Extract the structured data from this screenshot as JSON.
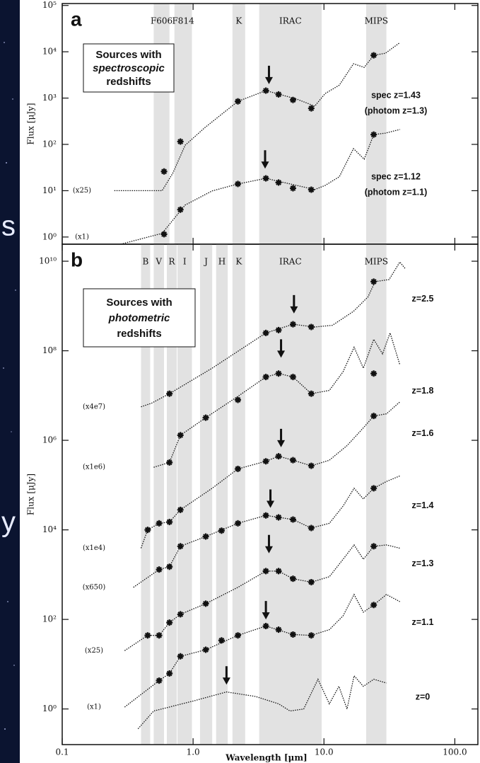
{
  "chart_data": [
    {
      "type": "line",
      "panel_label": "a",
      "ylabel": "Flux [μJy]",
      "xlim": [
        0.1,
        150
      ],
      "ylim": [
        0.7,
        110000
      ],
      "log_x": true,
      "log_y": true,
      "yticks": [
        {
          "value": 1,
          "label": "10⁰"
        },
        {
          "value": 10,
          "label": "10¹"
        },
        {
          "value": 100,
          "label": "10²"
        },
        {
          "value": 1000,
          "label": "10³"
        },
        {
          "value": 10000,
          "label": "10⁴"
        },
        {
          "value": 100000,
          "label": "10⁵"
        }
      ],
      "color": "#111111",
      "band_color": "#e2e2e2",
      "box_text": [
        "Sources with",
        "spectroscopic",
        "redshifts"
      ],
      "bands": [
        {
          "label": "F606",
          "range": [
            0.5,
            0.66
          ]
        },
        {
          "label": "F814",
          "range": [
            0.72,
            0.98
          ]
        },
        {
          "label": "K",
          "range": [
            2.0,
            2.5
          ]
        },
        {
          "label": "IRAC",
          "range": [
            3.2,
            9.6
          ]
        },
        {
          "label": "MIPS",
          "range": [
            21,
            30
          ]
        }
      ],
      "series": [
        {
          "labels": [
            "spec z=1.43",
            "(photom z=1.3)"
          ],
          "scale": "(x25)",
          "points": {
            "x": [
              0.6,
              0.8,
              2.2,
              3.6,
              4.5,
              5.8,
              8.0,
              24
            ],
            "values": [
              26,
              115,
              850,
              1450,
              1200,
              910,
              600,
              8400
            ]
          },
          "curve": {
            "x": [
              0.25,
              0.58,
              0.7,
              0.87,
              1.23,
              2.2,
              3.6,
              6.2,
              8.5,
              10.2,
              13.1,
              16.8,
              20.3,
              24,
              29.5,
              38
            ],
            "values": [
              10,
              10,
              24,
              96,
              230,
              850,
              1450,
              950,
              670,
              1250,
              1900,
              5500,
              4600,
              8400,
              9300,
              15700
            ]
          },
          "arrow": {
            "x": 3.8,
            "y": 2000
          }
        },
        {
          "labels": [
            "spec z=1.12",
            "(photom z=1.1)"
          ],
          "scale": "(x1)",
          "points": {
            "x": [
              0.6,
              0.8,
              2.2,
              3.6,
              4.5,
              5.8,
              8.0,
              24
            ],
            "values": [
              1.15,
              3.9,
              14,
              18.5,
              15,
              11.3,
              10.5,
              163
            ]
          },
          "curve": {
            "x": [
              0.28,
              0.58,
              0.87,
              1.4,
              2.2,
              3.6,
              6.2,
              8.5,
              10.2,
              13.1,
              16.8,
              20.3,
              24,
              29.5,
              38
            ],
            "values": [
              0.7,
              1.2,
              4.9,
              9.9,
              14,
              18.5,
              13,
              10.6,
              13,
              20,
              81,
              48,
              163,
              175,
              210
            ]
          },
          "arrow": {
            "x": 3.55,
            "y": 30
          }
        }
      ]
    },
    {
      "type": "line",
      "panel_label": "b",
      "ylabel": "Flux [μJy]",
      "xlabel": "Wavelength [μm]",
      "xlim": [
        0.1,
        150
      ],
      "ylim": [
        0.16,
        24000000000
      ],
      "log_x": true,
      "log_y": true,
      "xticks": [
        0.1,
        {
          "value": 1,
          "label": "1.0"
        },
        {
          "value": 10,
          "label": "10.0"
        },
        {
          "value": 100,
          "label": "100.0"
        }
      ],
      "yticks": [
        {
          "value": 1,
          "label": "10⁰"
        },
        {
          "value": 100,
          "label": "10²"
        },
        {
          "value": 10000,
          "label": "10⁴"
        },
        {
          "value": 1000000,
          "label": "10⁶"
        },
        {
          "value": 100000000,
          "label": "10⁸"
        },
        {
          "value": 10000000000,
          "label": "10¹⁰"
        }
      ],
      "color": "#111111",
      "band_color": "#e2e2e2",
      "box_text": [
        "Sources with",
        "photometric",
        "redshifts"
      ],
      "bands": [
        {
          "label": "B",
          "range": [
            0.4,
            0.47
          ]
        },
        {
          "label": "V",
          "range": [
            0.5,
            0.6
          ]
        },
        {
          "label": "R",
          "range": [
            0.63,
            0.75
          ]
        },
        {
          "label": "I",
          "range": [
            0.76,
            0.98
          ]
        },
        {
          "label": "J",
          "range": [
            1.13,
            1.4
          ]
        },
        {
          "label": "H",
          "range": [
            1.5,
            1.84
          ]
        },
        {
          "label": "K",
          "range": [
            2.0,
            2.5
          ]
        },
        {
          "label": "IRAC",
          "range": [
            3.2,
            9.6
          ]
        },
        {
          "label": "MIPS",
          "range": [
            21,
            30
          ]
        }
      ],
      "series": [
        {
          "labels": [
            "z=2.5"
          ],
          "scale": "(x4e7)",
          "points": {
            "x": [
              0.66,
              3.6,
              4.5,
              5.8,
              8.0,
              24
            ],
            "values": [
              11000000.0,
              250000000.0,
              290000000.0,
              390000000.0,
              340000000.0,
              3500000000.0
            ]
          },
          "curve": {
            "x": [
              0.4,
              0.48,
              0.66,
              1.4,
              3.6,
              5.8,
              8.5,
              11.6,
              16.8,
              21.7,
              24.6,
              31.5,
              38,
              42
            ],
            "values": [
              5600000.0,
              6700000.0,
              11000000.0,
              41000000.0,
              250000000.0,
              390000000.0,
              340000000.0,
              370000000.0,
              760000000.0,
              1600000000.0,
              3500000000.0,
              3900000000.0,
              9600000000.0,
              6700000000.0
            ]
          },
          "arrow": {
            "x": 5.9,
            "y": 680000000.0
          }
        },
        {
          "labels": [
            "z=1.8"
          ],
          "scale": "(x1e6)",
          "points": {
            "x": [
              0.66,
              0.8,
              1.25,
              2.2,
              3.6,
              4.5,
              5.8,
              8.0,
              24
            ],
            "values": [
              320000.0,
              1300000.0,
              3200000.0,
              8000000.0,
              26000000.0,
              31000000.0,
              26000000.0,
              11000000.0,
              31000000.0
            ]
          },
          "curve": {
            "x": [
              0.5,
              0.66,
              0.8,
              1.25,
              2.2,
              3.6,
              4.5,
              5.8,
              8.0,
              11,
              14,
              17,
              20,
              24,
              28,
              32,
              38
            ],
            "values": [
              250000.0,
              320000.0,
              1300000.0,
              3200000.0,
              9600000.0,
              26000000.0,
              31000000.0,
              26000000.0,
              11000000.0,
              13000000.0,
              34000000.0,
              120000000.0,
              41000000.0,
              180000000.0,
              85000000.0,
              250000000.0,
              49000000.0
            ]
          },
          "arrow": {
            "x": 4.7,
            "y": 70000000.0
          }
        },
        {
          "labels": [
            "z=1.6"
          ],
          "scale": "(x1e4)",
          "points": {
            "x": [
              0.45,
              0.55,
              0.66,
              0.8,
              2.2,
              3.6,
              4.5,
              5.8,
              8.0,
              24
            ],
            "values": [
              10000.0,
              14000.0,
              15000.0,
              28000.0,
              230000.0,
              340000.0,
              440000.0,
              360000.0,
              270000.0,
              3500000.0
            ]
          },
          "curve": {
            "x": [
              0.4,
              0.45,
              0.55,
              0.66,
              0.8,
              1.4,
              2.2,
              3.6,
              4.5,
              5.8,
              8.0,
              11,
              15,
              20,
              24,
              30,
              38
            ],
            "values": [
              3900.0,
              10000.0,
              14000.0,
              15000.0,
              28000.0,
              85000.0,
              230000.0,
              340000.0,
              440000.0,
              360000.0,
              270000.0,
              360000.0,
              760000.0,
              1900000.0,
              3500000.0,
              3900000.0,
              7200000.0
            ]
          },
          "arrow": {
            "x": 4.7,
            "y": 700000.0
          }
        },
        {
          "labels": [
            "z=1.4"
          ],
          "scale": "(x650)",
          "points": {
            "x": [
              0.55,
              0.66,
              0.8,
              1.25,
              1.65,
              2.2,
              3.6,
              4.5,
              5.8,
              8.0,
              24
            ],
            "values": [
              1300.0,
              1500.0,
              4300.0,
              7100.0,
              9600.0,
              14000.0,
              21000.0,
              19000.0,
              17000.0,
              11000.0,
              85000.0
            ]
          },
          "curve": {
            "x": [
              0.35,
              0.55,
              0.66,
              0.8,
              1.25,
              2.2,
              3.6,
              5.8,
              8.0,
              11,
              14,
              17,
              20,
              24,
              30,
              38
            ],
            "values": [
              520,
              1300.0,
              1500.0,
              4300.0,
              7100.0,
              14000.0,
              21000.0,
              17000.0,
              11000.0,
              14000.0,
              34000.0,
              85000.0,
              49000.0,
              85000.0,
              120000.0,
              160000.0
            ]
          },
          "arrow": {
            "x": 3.9,
            "y": 31000.0
          }
        },
        {
          "labels": [
            "z=1.3"
          ],
          "scale": "(x25)",
          "points": {
            "x": [
              0.45,
              0.55,
              0.66,
              0.8,
              1.25,
              3.6,
              4.5,
              5.8,
              8.0,
              24
            ],
            "values": [
              44,
              44,
              85,
              130,
              225,
              1200.0,
              1200.0,
              810,
              680,
              4300.0
            ]
          },
          "curve": {
            "x": [
              0.3,
              0.45,
              0.55,
              0.66,
              0.8,
              1.25,
              2.2,
              3.6,
              4.5,
              5.8,
              8.0,
              11,
              14,
              17,
              20,
              24,
              30,
              38
            ],
            "values": [
              20,
              44,
              44,
              85,
              130,
              225,
              520,
              1200.0,
              1200.0,
              810,
              680,
              900,
              2200.0,
              4600.0,
              2200.0,
              4300.0,
              4600.0,
              3900.0
            ]
          },
          "arrow": {
            "x": 3.8,
            "y": 3000.0
          }
        },
        {
          "labels": [
            "z=1.1"
          ],
          "scale": "(x1)",
          "points": {
            "x": [
              0.55,
              0.66,
              0.8,
              1.25,
              1.65,
              2.2,
              3.6,
              4.5,
              5.8,
              8.0,
              24
            ],
            "values": [
              4.3,
              6.2,
              15,
              21,
              34,
              44,
              71,
              59,
              46,
              44,
              210
            ]
          },
          "curve": {
            "x": [
              0.3,
              0.55,
              0.66,
              0.8,
              1.25,
              2.2,
              3.6,
              5.8,
              8.0,
              11,
              14,
              17,
              20,
              24,
              30,
              38
            ],
            "values": [
              1.1,
              4.3,
              6.2,
              15,
              21,
              44,
              71,
              46,
              44,
              59,
              120,
              360,
              145,
              210,
              360,
              250
            ]
          },
          "arrow": {
            "x": 3.6,
            "y": 100
          }
        },
        {
          "labels": [
            "z=0"
          ],
          "curve": {
            "x": [
              0.38,
              0.5,
              1.0,
              1.8,
              3.0,
              4.5,
              5.5,
              7,
              9,
              11,
              13,
              15,
              17,
              20,
              24,
              30
            ],
            "values": [
              0.36,
              0.9,
              1.5,
              2.4,
              1.9,
              1.3,
              0.9,
              1.0,
              4.6,
              1.3,
              3.2,
              1.0,
              5.5,
              3.2,
              4.6,
              3.8
            ]
          },
          "arrow": {
            "x": 1.8,
            "y": 3.5
          }
        }
      ]
    }
  ],
  "background_text": [
    "s",
    "y"
  ]
}
